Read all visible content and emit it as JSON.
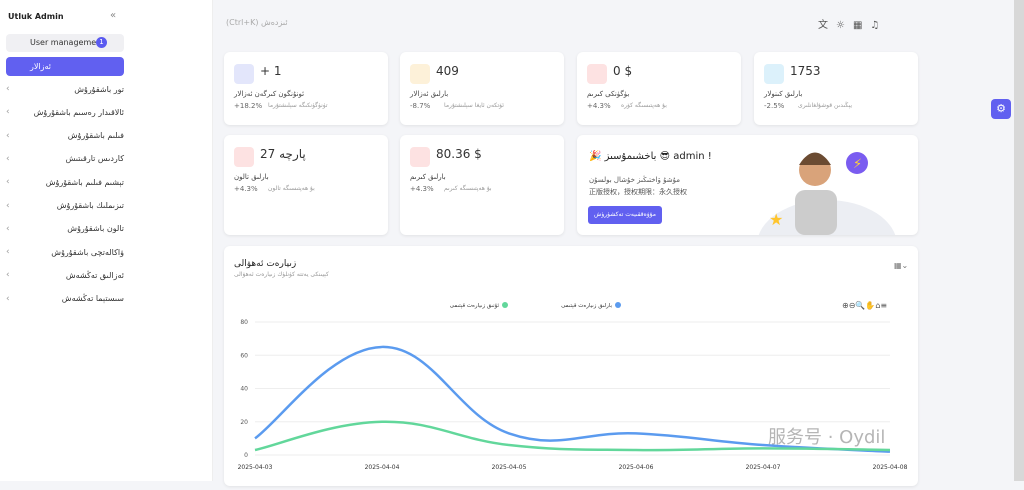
{
  "sidebar": {
    "title": "Utluk Admin",
    "group": "User management",
    "badge": "1",
    "active": "ئەزالار",
    "items": [
      "تور باشقۇرۇش",
      "ئالاقىدار رەسىم باشقۇرۇش",
      "فىلىم باشقۇرۇش",
      "كاردىس تارقىتىش",
      "تېشىم فىلىم باشقۇرۇش",
      "تىزىملىك باشقۇرۇش",
      "تالون باشقۇرۇش",
      "ۋاكالەتچى باشقۇرۇش",
      "ئەزالىق تەڭشەش",
      "سىستېما تەڭشەش"
    ]
  },
  "header": {
    "search": "ئىزدەش (Ctrl+K)"
  },
  "cards": [
    {
      "value": "+ 1",
      "label": "ئونۇنگون كىرگەن ئەزالار",
      "change": "+18.2%",
      "note": "تۈنۈگۈنكىگە سېلىشتۇرما"
    },
    {
      "value": "409",
      "label": "بارلىق ئەزالار",
      "change": "-8.7%",
      "note": "ئۆتكەن ئايغا سېلىشتۇرما"
    },
    {
      "value": "0 $",
      "label": "بۈگۈنكى كىرىم",
      "change": "+4.3%",
      "note": "بۇ ھەپتىسىگە كۆرە"
    },
    {
      "value": "1753",
      "label": "بارلىق كىنولار",
      "change": "-2.5%",
      "note": "يېڭىدىن قوشۇلغانلىرى"
    },
    {
      "value": "27 پارچە",
      "label": "بارلىق تالون",
      "change": "+4.3%",
      "note": "بۇ ھەپتىسىگە تالون"
    },
    {
      "value": "80.36 $",
      "label": "بارلىق كىرىم",
      "change": "+4.3%",
      "note": "بۇ ھەپتىسىگە كىرىم"
    }
  ],
  "welcome": {
    "title": "! admin 😎 باخشىمۇسىز 🎉",
    "line": "مۇشۇ ۋاختىڭىز خۇشال بولسۇن",
    "license": "正版授权，授权期限：永久授权",
    "button": "مۇۋەققىيەت تەكشۈرۈش"
  },
  "watermark": "服务号 · Oydil",
  "chart_data": {
    "type": "line",
    "title": "زىيارەت ئەھۋالى",
    "subtitle": "كېيىنكى يەتتە كۈنلۈك زىيارەت ئەھۋالى",
    "categories": [
      "2025-04-03",
      "2025-04-04",
      "2025-04-05",
      "2025-04-06",
      "2025-04-07",
      "2025-04-08"
    ],
    "series": [
      {
        "name": "بارلىق زىيارەت قېتىمى",
        "color": "#5b9bef",
        "values": [
          10,
          65,
          13,
          13,
          6,
          2
        ]
      },
      {
        "name": "ئۇنىق زىيارەت قېتىمى",
        "color": "#62d79b",
        "values": [
          3,
          20,
          6,
          3,
          4,
          3
        ]
      }
    ],
    "ylim": [
      0,
      80
    ],
    "yticks": [
      0,
      20,
      40,
      60,
      80
    ],
    "grid": true
  }
}
